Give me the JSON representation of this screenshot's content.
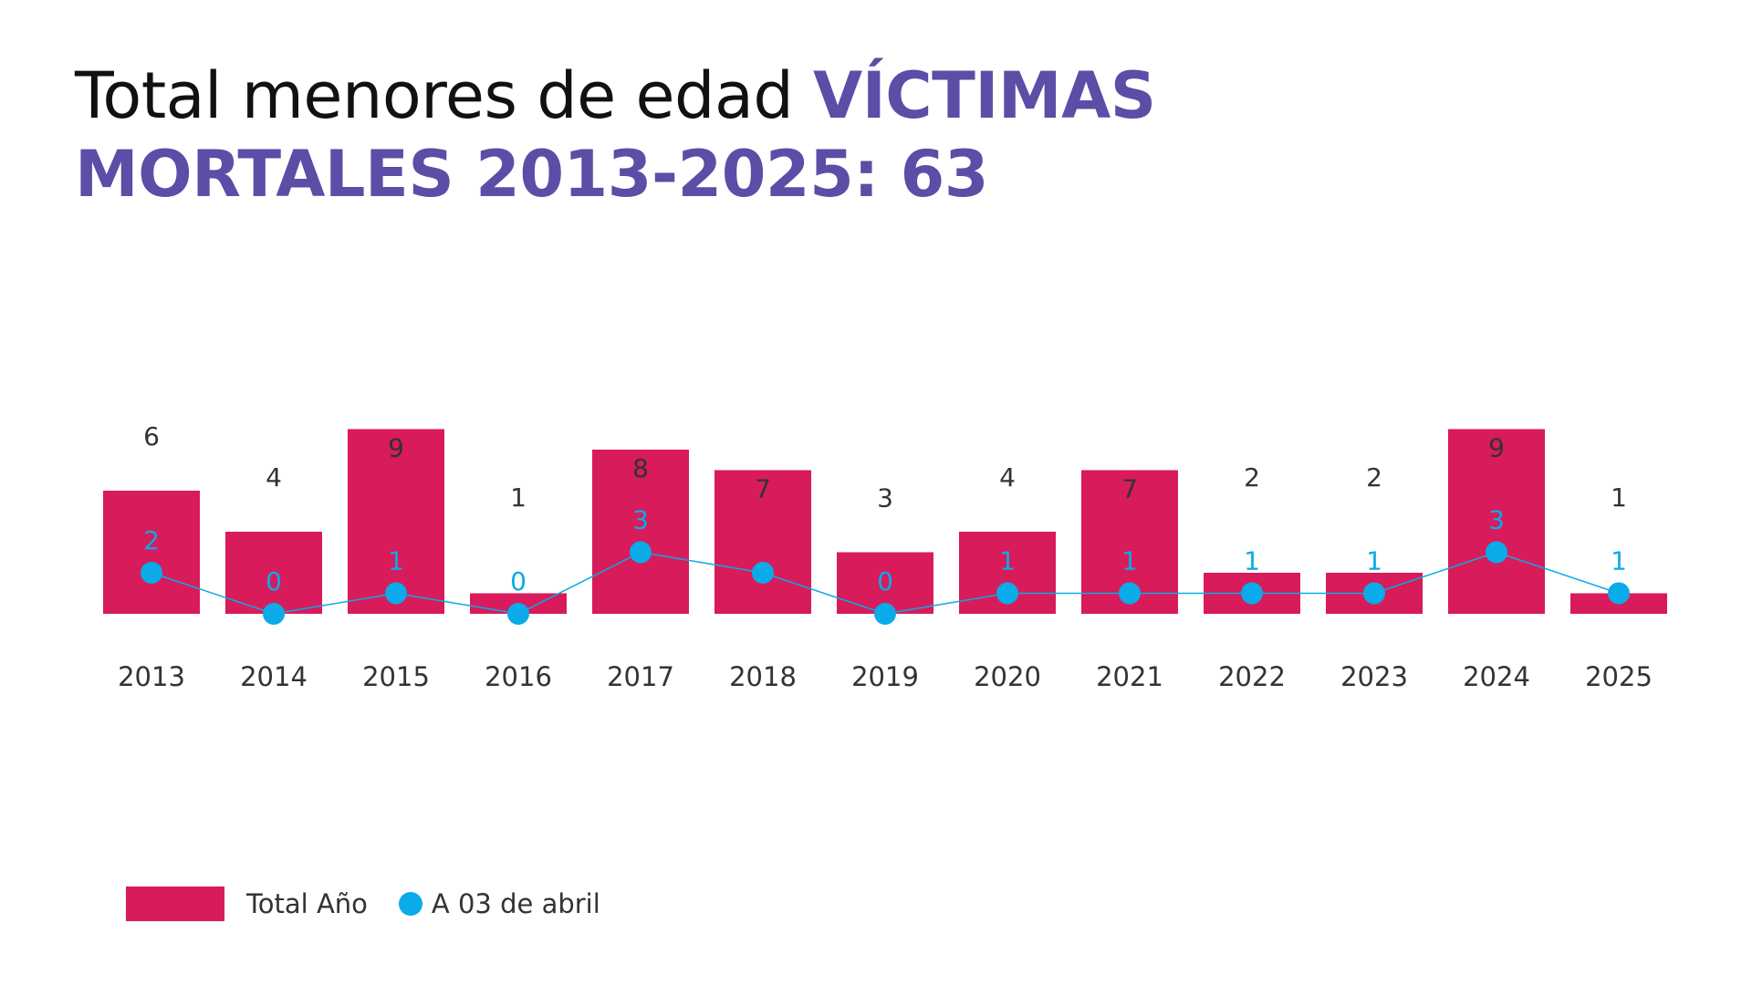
{
  "title": {
    "plain": "Total menores de edad ",
    "highlight": "VÍCTIMAS MORTALES 2013-2025: 63"
  },
  "colors": {
    "bar": "#d81b5a",
    "line": "#0aabe8",
    "title_accent": "#5a4ea6",
    "label_dark": "#333333",
    "label_accent": "#0aabe8"
  },
  "legend": {
    "total_label": "Total Año",
    "partial_label": "A 03 de abril"
  },
  "chart_data": {
    "type": "bar",
    "categories": [
      "2013",
      "2014",
      "2015",
      "2016",
      "2017",
      "2018",
      "2019",
      "2020",
      "2021",
      "2022",
      "2023",
      "2024",
      "2025"
    ],
    "series": [
      {
        "name": "Total Año",
        "type": "bar",
        "values": [
          6,
          4,
          9,
          1,
          8,
          7,
          3,
          4,
          7,
          2,
          2,
          9,
          1
        ]
      },
      {
        "name": "A 03 de abril",
        "type": "line",
        "values": [
          2,
          0,
          1,
          0,
          3,
          2,
          0,
          1,
          1,
          1,
          1,
          3,
          1
        ],
        "labels": [
          "2",
          "0",
          "1",
          "0",
          "3",
          "",
          "0",
          "1",
          "1",
          "1",
          "1",
          "3",
          "1"
        ]
      }
    ],
    "legend": "bottom-left",
    "grid": false
  }
}
